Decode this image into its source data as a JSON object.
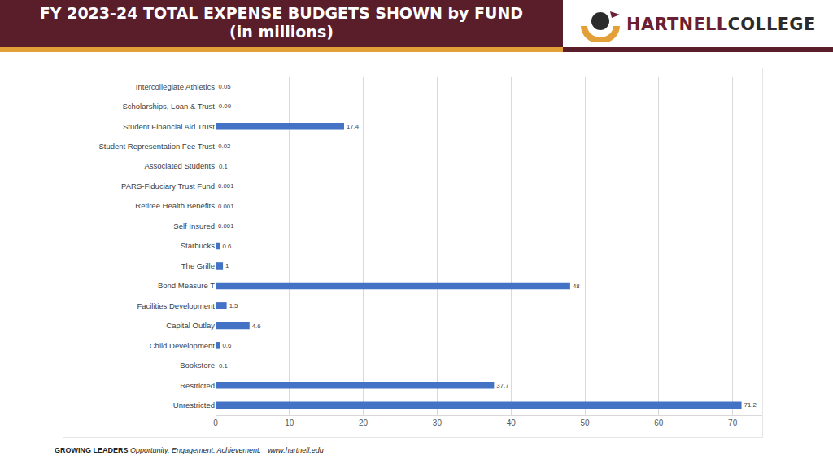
{
  "header": {
    "title": "FY 2023-24 TOTAL EXPENSE BUDGETS SHOWN by FUND",
    "subtitle": "(in millions)"
  },
  "logo": {
    "text": [
      "HARTNELL",
      "COLLEGE"
    ]
  },
  "footer": {
    "tagline": "GROWING LEADERS",
    "motto": "Opportunity. Engagement. Achievement.",
    "url": "www.hartnell.edu"
  },
  "chart_data": {
    "type": "bar",
    "orientation": "horizontal",
    "categories": [
      "Intercollegiate Athletics",
      "Scholarships, Loan & Trust",
      "Student Financial Aid Trust",
      "Student Representation Fee Trust",
      "Associated Students",
      "PARS-Fiduciary Trust Fund",
      "Retiree Health Benefits",
      "Self Insured",
      "Starbucks",
      "The Grille",
      "Bond Measure T",
      "Facilities Development",
      "Capital Outlay",
      "Child Development",
      "Bookstore",
      "Restricted",
      "Unrestricted"
    ],
    "values": [
      0.05,
      0.09,
      17.4,
      0.02,
      0.1,
      0.001,
      0.001,
      0.001,
      0.6,
      1,
      48,
      1.5,
      4.6,
      0.6,
      0.1,
      37.7,
      71.2
    ],
    "color": "#4472c4",
    "xlim": [
      0,
      74
    ],
    "xticks": [
      0,
      10,
      20,
      30,
      40,
      50,
      60,
      70
    ],
    "grid": true,
    "data_labels": true
  }
}
